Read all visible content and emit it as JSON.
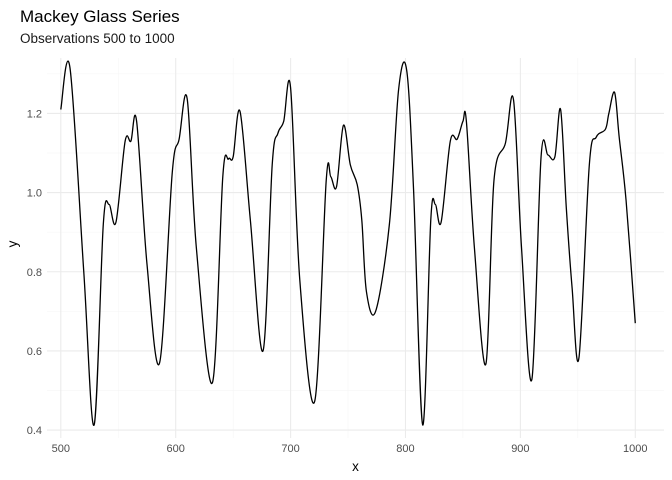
{
  "chart_data": {
    "type": "line",
    "title": "Mackey Glass Series",
    "subtitle": "Observations 500 to 1000",
    "xlabel": "x",
    "ylabel": "y",
    "xlim": [
      488,
      1025
    ],
    "ylim": [
      0.38,
      1.34
    ],
    "x_major_ticks": [
      500,
      600,
      700,
      800,
      900,
      1000
    ],
    "x_minor_ticks": [
      550,
      650,
      750,
      850,
      950
    ],
    "y_major_ticks": [
      0.4,
      0.6,
      0.8,
      1.0,
      1.2
    ],
    "y_minor_ticks": [
      0.5,
      0.7,
      0.9,
      1.1,
      1.3
    ],
    "x_tick_labels": [
      "500",
      "600",
      "700",
      "800",
      "900",
      "1000"
    ],
    "y_tick_labels": [
      "0.4",
      "0.6",
      "0.8",
      "1.0",
      "1.2"
    ],
    "grid": true,
    "legend": "none",
    "series": [
      {
        "color": "#000000",
        "x": [
          500,
          508,
          520,
          529,
          537,
          542,
          548,
          556,
          561,
          566,
          575,
          586,
          597,
          603,
          610,
          618,
          632,
          641,
          646,
          650,
          656,
          665,
          676,
          684,
          689,
          694,
          700,
          708,
          721,
          731,
          735,
          740,
          746,
          752,
          758,
          762,
          766,
          774,
          786,
          794,
          801,
          807,
          815,
          822,
          826,
          831,
          839,
          845,
          850,
          853,
          860,
          870,
          877,
          887,
          894,
          901,
          910,
          918,
          924,
          930,
          935,
          940,
          945,
          951,
          960,
          966,
          974,
          977,
          982,
          986,
          992,
          1000
        ],
        "y": [
          1.21,
          1.315,
          0.8,
          0.413,
          0.92,
          0.97,
          0.925,
          1.13,
          1.13,
          1.18,
          0.82,
          0.57,
          1.05,
          1.135,
          1.237,
          0.86,
          0.52,
          1.04,
          1.085,
          1.09,
          1.205,
          0.93,
          0.6,
          1.07,
          1.15,
          1.18,
          1.265,
          0.78,
          0.473,
          1.03,
          1.04,
          1.015,
          1.17,
          1.07,
          1.02,
          0.93,
          0.75,
          0.7,
          0.92,
          1.26,
          1.31,
          1.01,
          0.413,
          0.93,
          0.97,
          0.925,
          1.13,
          1.135,
          1.18,
          1.18,
          0.86,
          0.567,
          1.03,
          1.125,
          1.235,
          0.86,
          0.528,
          1.09,
          1.095,
          1.09,
          1.21,
          0.96,
          0.76,
          0.583,
          1.07,
          1.14,
          1.16,
          1.2,
          1.253,
          1.14,
          0.98,
          0.67
        ]
      }
    ]
  }
}
